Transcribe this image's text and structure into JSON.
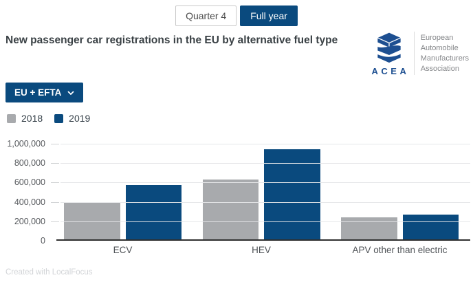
{
  "colors": {
    "accent_navy": "#0a4a7e",
    "bar_gray": "#a8aaad",
    "logo_blue": "#1d4f91"
  },
  "tabs": [
    {
      "label": "Quarter 4",
      "active": false
    },
    {
      "label": "Full year",
      "active": true
    }
  ],
  "header": {
    "title": "New passenger car registrations in the EU by alternative fuel type"
  },
  "logo": {
    "acronym": "ACEA",
    "org_lines": [
      "European",
      "Automobile",
      "Manufacturers",
      "Association"
    ]
  },
  "region_filter": {
    "selected": "EU + EFTA"
  },
  "legend": [
    {
      "label": "2018",
      "color": "#a8aaad"
    },
    {
      "label": "2019",
      "color": "#0a4a7e"
    }
  ],
  "chart_data": {
    "type": "bar",
    "categories": [
      "ECV",
      "HEV",
      "APV other than electric"
    ],
    "series": [
      {
        "name": "2018",
        "color": "#a8aaad",
        "values": [
          380000,
          628000,
          230000
        ]
      },
      {
        "name": "2019",
        "color": "#0a4a7e",
        "values": [
          565000,
          945000,
          257000
        ]
      }
    ],
    "ylim": [
      0,
      1000000
    ],
    "ytick_interval": 200000,
    "ytick_labels": [
      "0",
      "200,000",
      "400,000",
      "600,000",
      "800,000",
      "1,000,000"
    ],
    "grid": true,
    "legend_position": "top-left"
  },
  "footer": {
    "credit": "Created with LocalFocus"
  }
}
